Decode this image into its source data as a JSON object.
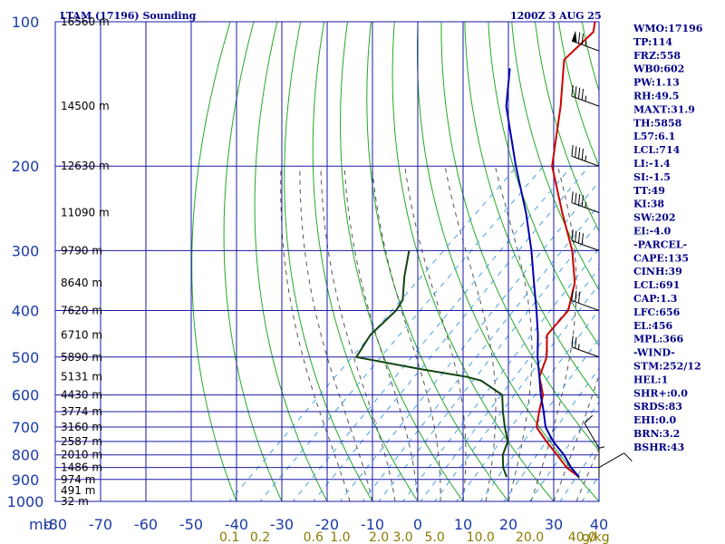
{
  "header": {
    "title": "LTAM (17196) Sounding",
    "datetime": "1200Z  3 AUG 25"
  },
  "colors": {
    "grid": "#1a1aa8",
    "dry_adiabat": "#22aa22",
    "moist_adiabat": "#555555",
    "mixing_ratio": "#4aa0e0",
    "temperature": "#cc0000",
    "dewpoint": "#114411",
    "parcel": "#0000aa",
    "wind": "#000000"
  },
  "chart_data": {
    "type": "skew-t",
    "y_unit_label": "mb",
    "y_scale": "log-pressure",
    "ylim": [
      1000,
      100
    ],
    "xlim": [
      -80,
      40
    ],
    "pressure_ticks": [
      100,
      200,
      300,
      400,
      500,
      600,
      700,
      800,
      900,
      1000
    ],
    "temperature_ticks": [
      -80,
      -70,
      -60,
      -50,
      -40,
      -30,
      -20,
      -10,
      0,
      10,
      20,
      30,
      40
    ],
    "temperature_tick_labels": [
      "-80",
      "-70",
      "-60",
      "-50",
      "-40",
      "-30",
      "-20",
      "-10",
      "0",
      "10",
      "20",
      "30",
      "40"
    ],
    "height_labels": [
      {
        "p": 100,
        "label": "16560 m"
      },
      {
        "p": 150,
        "label": "14500 m"
      },
      {
        "p": 200,
        "label": "12630 m"
      },
      {
        "p": 250,
        "label": "11090 m"
      },
      {
        "p": 300,
        "label": "9790 m"
      },
      {
        "p": 350,
        "label": "8640 m"
      },
      {
        "p": 400,
        "label": "7620 m"
      },
      {
        "p": 450,
        "label": "6710 m"
      },
      {
        "p": 500,
        "label": "5890 m"
      },
      {
        "p": 550,
        "label": "5131 m"
      },
      {
        "p": 600,
        "label": "4430 m"
      },
      {
        "p": 650,
        "label": "3774 m"
      },
      {
        "p": 700,
        "label": "3160 m"
      },
      {
        "p": 750,
        "label": "2587 m"
      },
      {
        "p": 800,
        "label": "2010 m"
      },
      {
        "p": 850,
        "label": "1486 m"
      },
      {
        "p": 900,
        "label": "974 m"
      },
      {
        "p": 950,
        "label": "491 m"
      },
      {
        "p": 1000,
        "label": "32 m"
      }
    ],
    "mixing_ratio_labels": [
      {
        "w": 0.1,
        "label": "0.1"
      },
      {
        "w": 0.2,
        "label": "0.2"
      },
      {
        "w": 0.6,
        "label": "0.6"
      },
      {
        "w": 1.0,
        "label": "1.0"
      },
      {
        "w": 2.0,
        "label": "2.0"
      },
      {
        "w": 3.0,
        "label": "3.0"
      },
      {
        "w": 5.0,
        "label": "5.0"
      },
      {
        "w": 10.0,
        "label": "10.0"
      },
      {
        "w": 20.0,
        "label": "20.0"
      },
      {
        "w": 40.0,
        "label": "40.0"
      }
    ],
    "mixing_ratio_unit": "g/kg",
    "dry_adiabats_C": [
      -40,
      -30,
      -20,
      -10,
      0,
      10,
      20,
      30,
      40,
      50,
      60,
      70,
      80,
      90,
      100,
      110,
      120,
      130,
      140,
      150,
      160,
      170,
      180
    ],
    "moist_adiabats_C": [
      -15,
      -10,
      -5,
      0,
      5,
      10,
      15,
      20,
      25,
      30,
      35
    ],
    "series": [
      {
        "key": "temperature",
        "points": [
          [
            890,
            30
          ],
          [
            850,
            25
          ],
          [
            800,
            20
          ],
          [
            750,
            14.5
          ],
          [
            700,
            9
          ],
          [
            650,
            6
          ],
          [
            600,
            3
          ],
          [
            550,
            -2
          ],
          [
            500,
            -5
          ],
          [
            450,
            -10
          ],
          [
            400,
            -11
          ],
          [
            350,
            -16
          ],
          [
            300,
            -24
          ],
          [
            250,
            -35
          ],
          [
            200,
            -48
          ],
          [
            150,
            -60
          ],
          [
            120,
            -70
          ],
          [
            105,
            -70
          ],
          [
            100,
            -72
          ]
        ]
      },
      {
        "key": "dewpoint",
        "points": [
          [
            890,
            14
          ],
          [
            850,
            11
          ],
          [
            800,
            8
          ],
          [
            750,
            6
          ],
          [
            700,
            2
          ],
          [
            650,
            -2
          ],
          [
            600,
            -6
          ],
          [
            560,
            -14
          ],
          [
            550,
            -18
          ],
          [
            530,
            -30
          ],
          [
            500,
            -47
          ],
          [
            450,
            -49
          ],
          [
            400,
            -49
          ],
          [
            380,
            -50
          ],
          [
            340,
            -55
          ],
          [
            300,
            -60
          ]
        ]
      },
      {
        "key": "parcel",
        "points": [
          [
            890,
            30
          ],
          [
            850,
            26
          ],
          [
            800,
            21.5
          ],
          [
            750,
            16
          ],
          [
            700,
            11
          ],
          [
            650,
            7
          ],
          [
            600,
            2.5
          ],
          [
            550,
            -2
          ],
          [
            500,
            -7
          ],
          [
            450,
            -12
          ],
          [
            400,
            -18
          ],
          [
            350,
            -25
          ],
          [
            300,
            -33
          ],
          [
            250,
            -43
          ],
          [
            200,
            -56
          ],
          [
            150,
            -72
          ],
          [
            125,
            -80
          ]
        ]
      }
    ],
    "wind_barbs": [
      {
        "p": 115,
        "dir": 290,
        "kt": 75
      },
      {
        "p": 150,
        "dir": 290,
        "kt": 45
      },
      {
        "p": 200,
        "dir": 290,
        "kt": 45
      },
      {
        "p": 250,
        "dir": 290,
        "kt": 45
      },
      {
        "p": 300,
        "dir": 290,
        "kt": 40
      },
      {
        "p": 400,
        "dir": 290,
        "kt": 30
      },
      {
        "p": 500,
        "dir": 290,
        "kt": 25
      },
      {
        "p": 775,
        "dir": 330,
        "kt": 10
      },
      {
        "p": 850,
        "dir": 60,
        "kt": 10
      },
      {
        "p": 890,
        "dir": 0,
        "kt": 5
      }
    ]
  },
  "indices": [
    "WMO:17196",
    "TP:114",
    "FRZ:558",
    "WB0:602",
    "PW:1.13",
    "RH:49.5",
    "MAXT:31.9",
    "TH:5858",
    "L57:6.1",
    "LCL:714",
    "LI:-1.4",
    "SI:-1.5",
    "TT:49",
    "KI:38",
    "SW:202",
    "EI:-4.0",
    "-PARCEL-",
    "CAPE:135",
    "CINH:39",
    "LCL:691",
    "CAP:1.3",
    "LFC:656",
    "EL:456",
    "MPL:366",
    "-WIND-",
    "STM:252/12",
    "HEL:1",
    "SHR+:0.0",
    "SRDS:83",
    "EHI:0.0",
    "BRN:3.2",
    "BSHR:43"
  ]
}
